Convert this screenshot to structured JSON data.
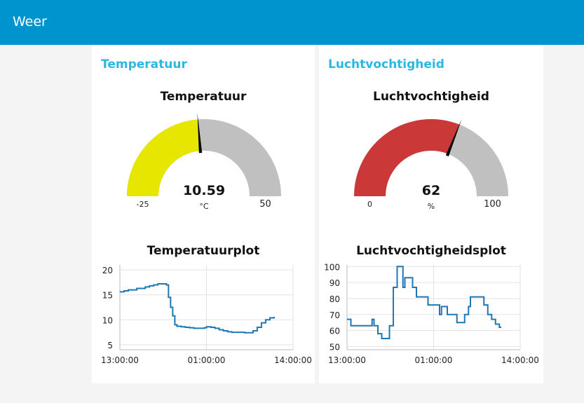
{
  "header": {
    "title": "Weer"
  },
  "groups": [
    {
      "title": "Temperatuur",
      "gauge": {
        "title": "Temperatuur",
        "value": 10.59,
        "value_label": "10.59",
        "unit": "°C",
        "min": -25,
        "max": 50,
        "min_label": "-25",
        "max_label": "50",
        "fill_color": "#e6e600",
        "track_color": "#c0c0c0"
      },
      "chart_title": "Temperatuurplot"
    },
    {
      "title": "Luchtvochtigheid",
      "gauge": {
        "title": "Luchtvochtigheid",
        "value": 62,
        "value_label": "62",
        "unit": "%",
        "min": 0,
        "max": 100,
        "min_label": "0",
        "max_label": "100",
        "fill_color": "#ca3838",
        "track_color": "#c0c0c0"
      },
      "chart_title": "Luchtvochtigheidsplot"
    }
  ],
  "chart_data": [
    {
      "type": "line",
      "title": "Temperatuurplot",
      "x_ticks": [
        "13:00:00",
        "01:00:00",
        "14:00:00"
      ],
      "y_ticks": [
        5,
        10,
        15,
        20
      ],
      "ylim": [
        4,
        21
      ],
      "line_color": "#1f77b4",
      "step": true,
      "points": [
        [
          0,
          15.6
        ],
        [
          2,
          15.8
        ],
        [
          4,
          16.0
        ],
        [
          6,
          16.0
        ],
        [
          8,
          16.3
        ],
        [
          10,
          16.3
        ],
        [
          12,
          16.6
        ],
        [
          14,
          16.8
        ],
        [
          16,
          17.0
        ],
        [
          18,
          17.2
        ],
        [
          20,
          17.2
        ],
        [
          22,
          17.0
        ],
        [
          23,
          14.5
        ],
        [
          24,
          12.5
        ],
        [
          25,
          10.8
        ],
        [
          26,
          9.0
        ],
        [
          27,
          8.7
        ],
        [
          29,
          8.6
        ],
        [
          31,
          8.5
        ],
        [
          33,
          8.4
        ],
        [
          35,
          8.3
        ],
        [
          38,
          8.3
        ],
        [
          40,
          8.4
        ],
        [
          41,
          8.6
        ],
        [
          43,
          8.5
        ],
        [
          45,
          8.3
        ],
        [
          47,
          8.0
        ],
        [
          49,
          7.8
        ],
        [
          51,
          7.6
        ],
        [
          53,
          7.5
        ],
        [
          56,
          7.5
        ],
        [
          59,
          7.4
        ],
        [
          62,
          7.4
        ],
        [
          63,
          7.8
        ],
        [
          65,
          8.5
        ],
        [
          67,
          9.4
        ],
        [
          69,
          10.0
        ],
        [
          71,
          10.4
        ],
        [
          73,
          10.6
        ]
      ]
    },
    {
      "type": "line",
      "title": "Luchtvochtigheidsplot",
      "x_ticks": [
        "13:00:00",
        "01:00:00",
        "14:00:00"
      ],
      "y_ticks": [
        50,
        60,
        70,
        80,
        90,
        100
      ],
      "ylim": [
        48,
        101
      ],
      "line_color": "#1f77b4",
      "step": true,
      "points": [
        [
          0,
          67
        ],
        [
          2,
          63
        ],
        [
          9,
          63
        ],
        [
          13,
          67
        ],
        [
          14,
          63
        ],
        [
          16,
          58
        ],
        [
          18,
          55
        ],
        [
          22,
          63
        ],
        [
          24,
          87
        ],
        [
          26,
          100
        ],
        [
          29,
          87
        ],
        [
          30,
          93
        ],
        [
          34,
          87
        ],
        [
          36,
          81
        ],
        [
          42,
          76
        ],
        [
          48,
          70
        ],
        [
          49,
          75
        ],
        [
          51,
          75
        ],
        [
          52,
          70
        ],
        [
          55,
          70
        ],
        [
          57,
          65
        ],
        [
          61,
          70
        ],
        [
          63,
          75
        ],
        [
          64,
          81
        ],
        [
          70,
          81
        ],
        [
          71,
          76
        ],
        [
          73,
          70
        ],
        [
          75,
          67
        ],
        [
          77,
          64
        ],
        [
          79,
          62
        ],
        [
          80,
          62
        ]
      ]
    }
  ]
}
